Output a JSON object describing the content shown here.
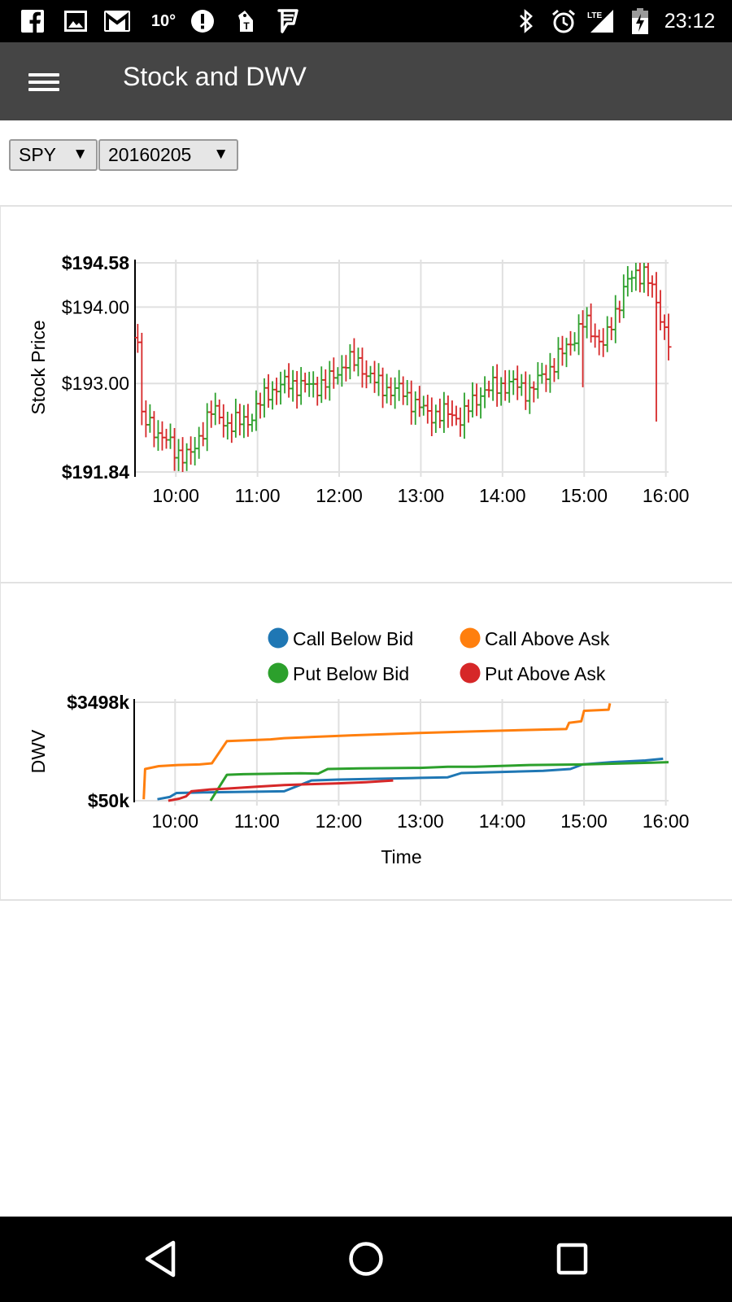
{
  "status_bar": {
    "temperature": "10°",
    "network": "LTE",
    "time": "23:12",
    "left_icons": [
      "facebook-icon",
      "gallery-icon",
      "gmail-icon",
      "weather-temp",
      "alert-icon",
      "t-mobile-icon",
      "foursquare-icon"
    ],
    "right_icons": [
      "bluetooth-icon",
      "alarm-icon",
      "lte-signal-icon",
      "battery-charging-icon"
    ]
  },
  "app_bar": {
    "title": "Stock and DWV",
    "menu_icon": "hamburger-menu-icon"
  },
  "controls": {
    "symbol": {
      "value": "SPY",
      "arrow": "▼"
    },
    "date": {
      "value": "20160205",
      "arrow": "▼"
    }
  },
  "chart_data": [
    {
      "type": "ohlc",
      "ylabel": "Stock Price",
      "ylim": [
        191.84,
        194.58
      ],
      "y_ticks": [
        {
          "value": 194.58,
          "label": "$194.58",
          "bold": true
        },
        {
          "value": 194.0,
          "label": "$194.00",
          "bold": false
        },
        {
          "value": 193.0,
          "label": "$193.00",
          "bold": false
        },
        {
          "value": 191.84,
          "label": "$191.84",
          "bold": true
        }
      ],
      "x_ticks": [
        "10:00",
        "11:00",
        "12:00",
        "13:00",
        "14:00",
        "15:00",
        "16:00"
      ],
      "x_range_minutes": [
        570,
        962
      ],
      "grid": true,
      "up_color": "#2ca02c",
      "down_color": "#d62728"
    },
    {
      "type": "line",
      "ylabel": "DWV",
      "xlabel": "Time",
      "ylim": [
        50,
        3498
      ],
      "y_ticks": [
        {
          "value": 3498,
          "label": "$3498k"
        },
        {
          "value": 50,
          "label": "$50k"
        }
      ],
      "x_ticks": [
        "10:00",
        "11:00",
        "12:00",
        "13:00",
        "14:00",
        "15:00",
        "16:00"
      ],
      "x_range_minutes": [
        570,
        962
      ],
      "grid": true,
      "legend": "top",
      "series": [
        {
          "name": "Call Below Bid",
          "color": "#1f77b4",
          "points": [
            [
              587,
              100
            ],
            [
              596,
              180
            ],
            [
              601,
              320
            ],
            [
              621,
              340
            ],
            [
              680,
              380
            ],
            [
              700,
              760
            ],
            [
              720,
              790
            ],
            [
              780,
              850
            ],
            [
              800,
              870
            ],
            [
              810,
              1020
            ],
            [
              870,
              1100
            ],
            [
              890,
              1160
            ],
            [
              899,
              1320
            ],
            [
              920,
              1400
            ],
            [
              945,
              1460
            ],
            [
              958,
              1520
            ]
          ]
        },
        {
          "name": "Call Above Ask",
          "color": "#ff7f0e",
          "points": [
            [
              577,
              100
            ],
            [
              578,
              1160
            ],
            [
              588,
              1260
            ],
            [
              602,
              1300
            ],
            [
              618,
              1320
            ],
            [
              627,
              1360
            ],
            [
              638,
              2140
            ],
            [
              670,
              2200
            ],
            [
              680,
              2240
            ],
            [
              730,
              2340
            ],
            [
              779,
              2420
            ],
            [
              820,
              2480
            ],
            [
              887,
              2560
            ],
            [
              889,
              2780
            ],
            [
              898,
              2830
            ],
            [
              900,
              3200
            ],
            [
              918,
              3240
            ],
            [
              919,
              3460
            ]
          ]
        },
        {
          "name": "Put Below Bid",
          "color": "#2ca02c",
          "points": [
            [
              626,
              50
            ],
            [
              638,
              960
            ],
            [
              650,
              980
            ],
            [
              665,
              990
            ],
            [
              692,
              1010
            ],
            [
              705,
              1000
            ],
            [
              712,
              1160
            ],
            [
              735,
              1180
            ],
            [
              780,
              1200
            ],
            [
              800,
              1240
            ],
            [
              820,
              1240
            ],
            [
              860,
              1300
            ],
            [
              900,
              1320
            ],
            [
              950,
              1380
            ],
            [
              962,
              1400
            ]
          ]
        },
        {
          "name": "Put Above Ask",
          "color": "#d62728",
          "points": [
            [
              595,
              50
            ],
            [
              603,
              120
            ],
            [
              608,
              200
            ],
            [
              612,
              380
            ],
            [
              625,
              440
            ],
            [
              640,
              480
            ],
            [
              660,
              540
            ],
            [
              680,
              600
            ],
            [
              700,
              630
            ],
            [
              720,
              660
            ],
            [
              740,
              700
            ],
            [
              760,
              760
            ]
          ]
        }
      ]
    }
  ],
  "nav_bar": {
    "back": "back-icon",
    "home": "home-icon",
    "recents": "recents-icon"
  },
  "colors": {
    "app_bar": "#454545",
    "status_bar": "#000000",
    "grid": "#e0e0e0"
  }
}
